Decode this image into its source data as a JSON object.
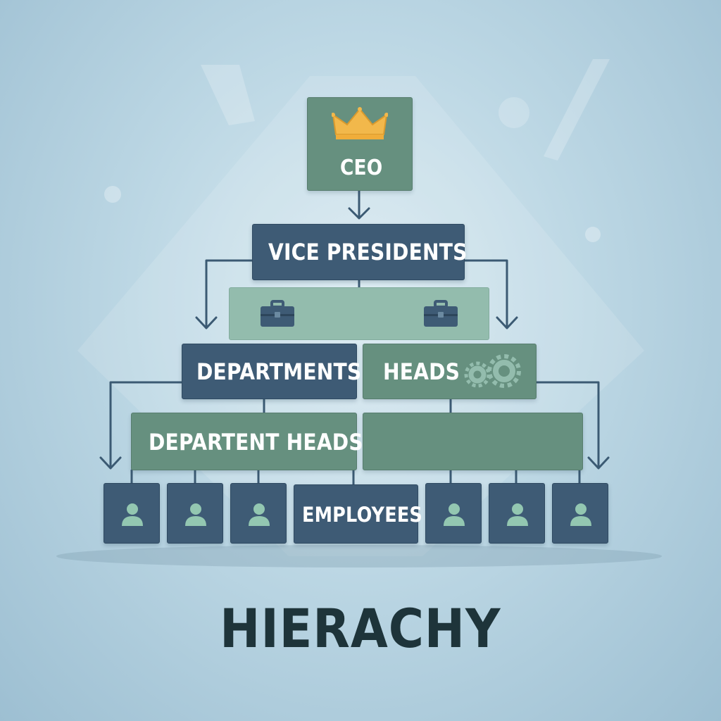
{
  "diagram": {
    "title": "HIERACHY",
    "nodes": {
      "ceo": "CEO",
      "vice_presidents": "VICE PRESIDENTS",
      "departments": "DEPARTMENTS",
      "heads": "HEADS",
      "department_heads": "DEPARTENT HEADS",
      "employees": "EMPLOYEES"
    },
    "icons": {
      "ceo": "crown-icon",
      "vp_band": [
        "briefcase-icon",
        "briefcase-icon"
      ],
      "heads": "gears-icon",
      "employees": [
        "person-icon",
        "person-icon",
        "person-icon",
        "person-icon",
        "person-icon",
        "person-icon"
      ]
    },
    "colors": {
      "dark_box": "#3e5b75",
      "green_box": "#66907f",
      "pale_box": "#93bcad",
      "crown": "#f2b84b",
      "person": "#93c7b1",
      "title_text": "#1e343a",
      "connector": "#3b5a73"
    }
  }
}
